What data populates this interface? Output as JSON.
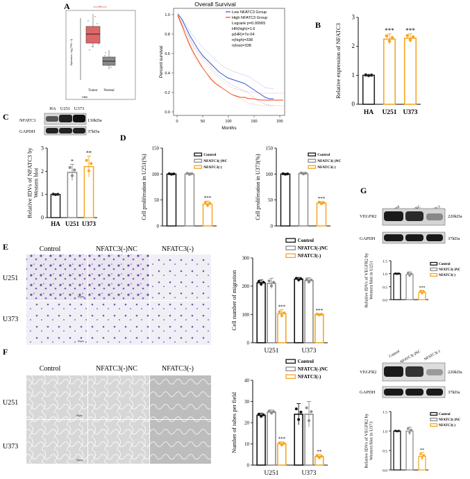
{
  "panel_labels": {
    "A": "A",
    "B": "B",
    "C": "C",
    "D": "D",
    "E": "E",
    "F": "F",
    "G": "G"
  },
  "colors": {
    "control": "#111111",
    "nc": "#8c8c8c",
    "knock": "#f5a623",
    "tumor": "#e06666",
    "normal": "#8a8a8a",
    "low_group": "#3355cc",
    "high_group": "#ee4411",
    "grid": "#dddddd",
    "ha_point": "#222222"
  },
  "boxplot": {
    "ylabel": "Expression - log₂(TPM + 1)",
    "categories": [
      "Tumor",
      "Normal"
    ],
    "dataset_label": "GBM",
    "star": "*"
  },
  "survival": {
    "title": "Overall Survival",
    "xlabel": "Months",
    "ylabel": "Percent survival",
    "legend": [
      "Low NFATC3 Group",
      "High NFATC3 Group",
      "Logrank p=0.00065",
      "HR(high)=1.6",
      "p(HR)=7e-04",
      "n(high)=338",
      "n(low)=338"
    ],
    "xticks": [
      "0",
      "50",
      "100",
      "150",
      "200"
    ],
    "yticks": [
      "0.0",
      "0.2",
      "0.4",
      "0.6",
      "0.8",
      "1.0"
    ]
  },
  "western_c": {
    "lanes": [
      "HA",
      "U251",
      "U373"
    ],
    "rows": [
      "NFATC3",
      "GAPDH"
    ],
    "sizes": [
      "130kDa",
      "37kDa"
    ]
  },
  "western_g": {
    "lanes": [
      "Control",
      "NFATC3(-)NC",
      "NFATC3(-)"
    ],
    "rows": [
      "VEGFR2",
      "GAPDH"
    ],
    "sizes": [
      "220kDa",
      "37kDa"
    ]
  },
  "legend_labels": [
    "Control",
    "NFATC3(-)NC",
    "NFATC3(-)"
  ],
  "image_row_labels": [
    "U251",
    "U373"
  ],
  "scale_label": "50μm",
  "chart_data": [
    {
      "id": "B",
      "type": "bar",
      "categories": [
        "HA",
        "U251",
        "U373"
      ],
      "values": [
        1.0,
        2.25,
        2.28
      ],
      "errors": [
        0.02,
        0.18,
        0.15
      ],
      "ylabel": "Relative expression of NFATC3",
      "ylim": [
        0,
        3
      ],
      "yticks": [
        "0",
        "1",
        "2",
        "3"
      ],
      "annotations": [
        "",
        "***",
        "***"
      ]
    },
    {
      "id": "C",
      "type": "bar",
      "categories": [
        "HA",
        "U251",
        "U373"
      ],
      "values": [
        1.0,
        1.95,
        2.2
      ],
      "errors": [
        0.02,
        0.35,
        0.45
      ],
      "ylabel": "Relative IDVs of NFATC3 by Western blot",
      "ylim": [
        0,
        3
      ],
      "yticks": [
        "0",
        "1",
        "2",
        "3"
      ],
      "annotations": [
        "",
        "*",
        "**"
      ]
    },
    {
      "id": "D1",
      "type": "bar",
      "categories": [
        "Control",
        "NFATC3(-)NC",
        "NFATC3(-)"
      ],
      "values": [
        100,
        100,
        42
      ],
      "errors": [
        1,
        2,
        6
      ],
      "ylabel": "Cell proliferation in U251(%)",
      "ylim": [
        0,
        150
      ],
      "yticks": [
        "0",
        "50",
        "100",
        "150"
      ],
      "annotations": [
        "",
        "",
        "***"
      ]
    },
    {
      "id": "D2",
      "type": "bar",
      "categories": [
        "Control",
        "NFATC3(-)NC",
        "NFATC3(-)"
      ],
      "values": [
        100,
        101,
        44
      ],
      "errors": [
        1,
        2,
        3
      ],
      "ylabel": "Cell proliferation in U373(%)",
      "ylim": [
        0,
        150
      ],
      "yticks": [
        "0",
        "50",
        "100",
        "150"
      ],
      "annotations": [
        "",
        "",
        "***"
      ]
    },
    {
      "id": "E",
      "type": "bar",
      "categories": [
        "U251",
        "U373"
      ],
      "series": [
        {
          "name": "Control",
          "values": [
            212,
            225
          ]
        },
        {
          "name": "NFATC3(-)NC",
          "values": [
            210,
            220
          ]
        },
        {
          "name": "NFATC3(-)",
          "values": [
            103,
            100
          ]
        }
      ],
      "errors": [
        [
          10,
          6
        ],
        [
          18,
          10
        ],
        [
          14,
          3
        ]
      ],
      "ylabel": "Cell number of migration",
      "ylim": [
        0,
        300
      ],
      "yticks": [
        "0",
        "100",
        "200",
        "300"
      ],
      "annotations": [
        [
          "",
          "",
          "***"
        ],
        [
          "",
          "",
          "***"
        ]
      ]
    },
    {
      "id": "F",
      "type": "bar",
      "categories": [
        "U251",
        "U373"
      ],
      "series": [
        {
          "name": "Control",
          "values": [
            23.5,
            24
          ]
        },
        {
          "name": "NFATC3(-)NC",
          "values": [
            25,
            24
          ]
        },
        {
          "name": "NFATC3(-)",
          "values": [
            10,
            4
          ]
        }
      ],
      "errors": [
        [
          1,
          5
        ],
        [
          1,
          6
        ],
        [
          1,
          1
        ]
      ],
      "ylabel": "Number of tubes per field",
      "ylim": [
        0,
        40
      ],
      "yticks": [
        "0",
        "10",
        "20",
        "30",
        "40"
      ],
      "annotations": [
        [
          "",
          "",
          "***"
        ],
        [
          "",
          "",
          "**"
        ]
      ]
    },
    {
      "id": "G1",
      "type": "bar",
      "categories": [
        "Control",
        "NFATC3(-)NC",
        "NFATC3(-)"
      ],
      "values": [
        1.0,
        0.97,
        0.28
      ],
      "errors": [
        0.01,
        0.1,
        0.08
      ],
      "ylabel": "Relative IDVs of VEGFR2 by Western blot in U251",
      "ylim": [
        0,
        1.5
      ],
      "yticks": [
        "0.0",
        "0.5",
        "1.0",
        "1.5"
      ],
      "annotations": [
        "",
        "",
        "***"
      ]
    },
    {
      "id": "G2",
      "type": "bar",
      "categories": [
        "Control",
        "NFATC3(-)NC",
        "NFATC3(-)"
      ],
      "values": [
        1.0,
        1.0,
        0.35
      ],
      "errors": [
        0.01,
        0.1,
        0.1
      ],
      "ylabel": "Relative IDVs of VEGFR2 by Western blot in U373",
      "ylim": [
        0,
        1.5
      ],
      "yticks": [
        "0.0",
        "0.5",
        "1.0",
        "1.5"
      ],
      "annotations": [
        "",
        "",
        "**"
      ]
    }
  ]
}
